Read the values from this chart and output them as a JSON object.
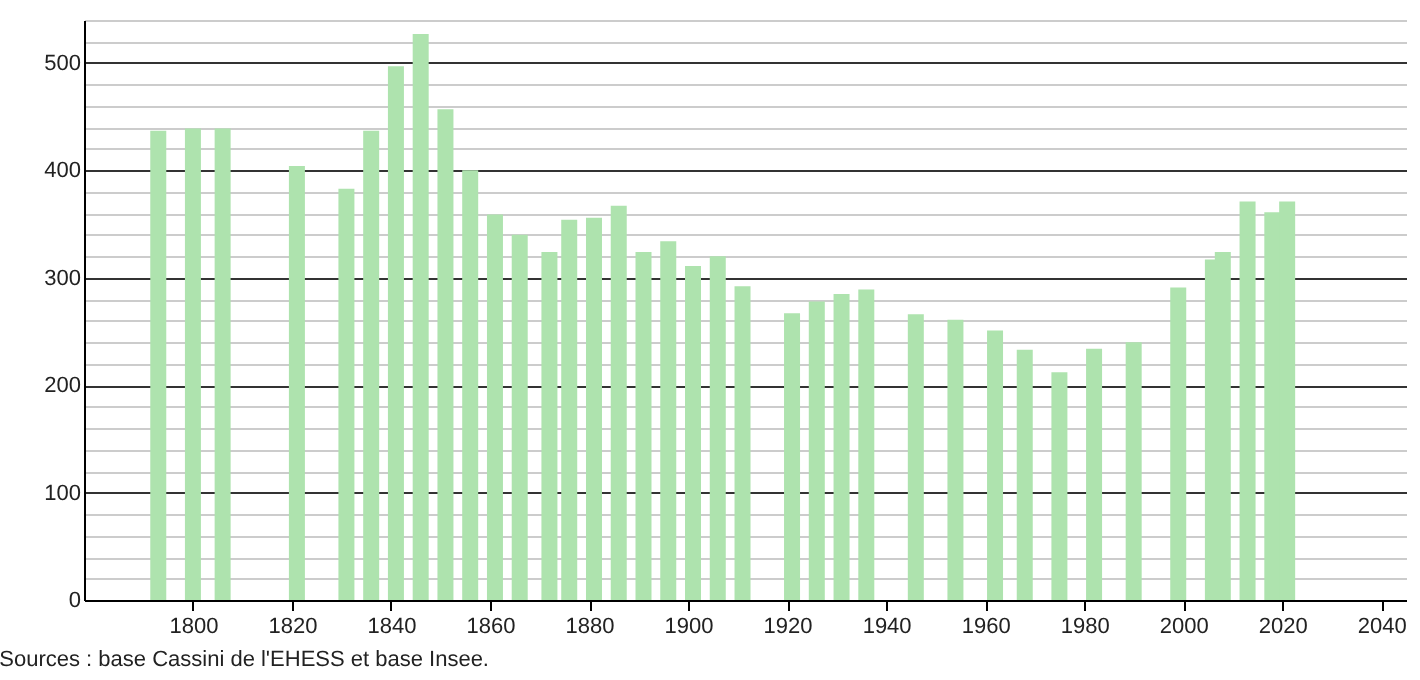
{
  "chart_data": {
    "type": "bar",
    "annotations": [
      "Sources : base Cassini de l'EHESS et base Insee."
    ],
    "x": [
      1793,
      1800,
      1806,
      1821,
      1831,
      1836,
      1841,
      1846,
      1851,
      1856,
      1861,
      1866,
      1872,
      1876,
      1881,
      1886,
      1891,
      1896,
      1901,
      1906,
      1911,
      1921,
      1926,
      1931,
      1936,
      1946,
      1954,
      1962,
      1968,
      1975,
      1982,
      1990,
      1999,
      2006,
      2008,
      2013,
      2018,
      2021
    ],
    "values": [
      437,
      439,
      439,
      404,
      383,
      437,
      497,
      527,
      457,
      400,
      359,
      340,
      324,
      354,
      356,
      367,
      324,
      334,
      311,
      320,
      292,
      267,
      278,
      285,
      289,
      266,
      261,
      251,
      233,
      212,
      234,
      240,
      291,
      317,
      324,
      371,
      361,
      371
    ],
    "color": "#aee3ae",
    "xlim": [
      1778,
      2045
    ],
    "xticks": [
      1800,
      1820,
      1840,
      1860,
      1880,
      1900,
      1920,
      1940,
      1960,
      1980,
      2000,
      2020,
      2040
    ],
    "ylim": [
      0,
      540
    ],
    "yticks": [
      0,
      {
        "value": 20,
        "label": null
      },
      {
        "value": 40,
        "label": null
      },
      {
        "value": 60,
        "label": null
      },
      {
        "value": 80,
        "label": null
      },
      100,
      {
        "value": 120,
        "label": null
      },
      {
        "value": 140,
        "label": null
      },
      {
        "value": 160,
        "label": null
      },
      {
        "value": 180,
        "label": null
      },
      200,
      {
        "value": 220,
        "label": null
      },
      {
        "value": 240,
        "label": null
      },
      {
        "value": 260,
        "label": null
      },
      {
        "value": 280,
        "label": null
      },
      300,
      {
        "value": 320,
        "label": null
      },
      {
        "value": 340,
        "label": null
      },
      {
        "value": 360,
        "label": null
      },
      {
        "value": 380,
        "label": null
      },
      400,
      {
        "value": 420,
        "label": null
      },
      {
        "value": 440,
        "label": null
      },
      {
        "value": 460,
        "label": null
      },
      {
        "value": 480,
        "label": null
      },
      500,
      {
        "value": 520,
        "label": null
      },
      {
        "value": 540,
        "label": null
      }
    ],
    "grid": "y"
  }
}
